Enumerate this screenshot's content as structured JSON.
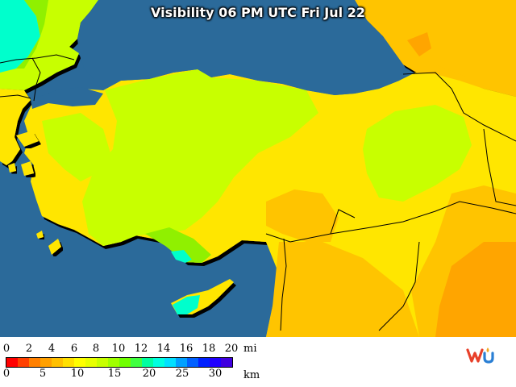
{
  "title": "Visibility 06 PM UTC Fri Jul 22",
  "legend": {
    "mi_ticks": [
      "0",
      "2",
      "4",
      "6",
      "8",
      "10",
      "12",
      "14",
      "16",
      "18",
      "20"
    ],
    "mi_unit": "mi",
    "km_ticks": [
      "0",
      "5",
      "10",
      "15",
      "20",
      "25",
      "30"
    ],
    "km_unit": "km",
    "colors": [
      "#ff0000",
      "#ff4000",
      "#ff8000",
      "#ffa000",
      "#ffc000",
      "#ffe000",
      "#ffff00",
      "#e8ff00",
      "#c8ff00",
      "#a0ff00",
      "#70ff00",
      "#40ff40",
      "#00ffa0",
      "#00ffe0",
      "#00e0ff",
      "#00a0ff",
      "#0060ff",
      "#0020ff",
      "#2000ff",
      "#4000e0"
    ]
  },
  "colors": {
    "water": "#2b6a9a",
    "vis_yellow": "#ffe600",
    "vis_yellow_green": "#c8ff00",
    "vis_green": "#90f000",
    "vis_orange": "#ffc400",
    "vis_dark_orange": "#ffa500",
    "vis_cyan": "#00ffcc"
  },
  "logo_text": "wu"
}
